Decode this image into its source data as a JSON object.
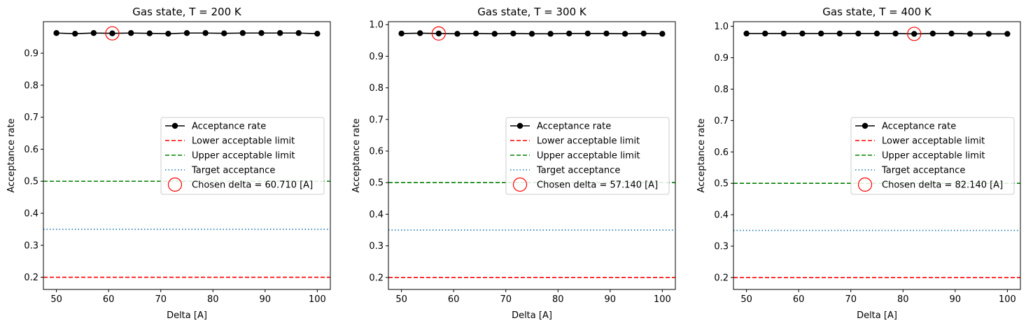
{
  "chart_data": [
    {
      "type": "line",
      "title": "Gas state, T = 200 K",
      "xlabel": "Delta  [A]",
      "ylabel": "Acceptance rate",
      "xlim": [
        47.5,
        102.5
      ],
      "ylim": [
        0.162,
        0.9985
      ],
      "xticks": [
        50,
        60,
        70,
        80,
        90,
        100
      ],
      "yticks": [
        0.2,
        0.3,
        0.4,
        0.5,
        0.6,
        0.7,
        0.8,
        0.9
      ],
      "x": [
        50.0,
        53.57,
        57.14,
        60.71,
        64.29,
        67.86,
        71.43,
        75.0,
        78.57,
        82.14,
        85.71,
        89.29,
        92.86,
        96.43,
        100.0
      ],
      "series": [
        {
          "name": "Acceptance rate",
          "values": [
            0.963,
            0.961,
            0.963,
            0.962,
            0.963,
            0.962,
            0.961,
            0.963,
            0.963,
            0.962,
            0.963,
            0.963,
            0.963,
            0.963,
            0.961
          ],
          "color": "#000000"
        }
      ],
      "reference_lines": [
        {
          "name": "Lower acceptable limit",
          "y": 0.2,
          "color": "#ff0000",
          "style": "dashed"
        },
        {
          "name": "Upper acceptable limit",
          "y": 0.5,
          "color": "#008000",
          "style": "dashed"
        },
        {
          "name": "Target acceptance",
          "y": 0.35,
          "color": "#1f77b4",
          "style": "dotted"
        }
      ],
      "chosen": {
        "label": "Chosen delta = 60.710 [A]",
        "x": 60.71,
        "y": 0.962,
        "color": "#ff0000"
      },
      "legend": "center-right",
      "grid": false
    },
    {
      "type": "line",
      "title": "Gas state, T = 300 K",
      "xlabel": "Delta  [A]",
      "ylabel": "Acceptance rate",
      "xlim": [
        47.5,
        102.5
      ],
      "ylim": [
        0.162,
        1.0094
      ],
      "xticks": [
        50,
        60,
        70,
        80,
        90,
        100
      ],
      "yticks": [
        0.2,
        0.3,
        0.4,
        0.5,
        0.6,
        0.7,
        0.8,
        0.9,
        1.0
      ],
      "x": [
        50.0,
        53.57,
        57.14,
        60.71,
        64.29,
        67.86,
        71.43,
        75.0,
        78.57,
        82.14,
        85.71,
        89.29,
        92.86,
        96.43,
        100.0
      ],
      "series": [
        {
          "name": "Acceptance rate",
          "values": [
            0.972,
            0.973,
            0.972,
            0.971,
            0.972,
            0.971,
            0.972,
            0.971,
            0.971,
            0.972,
            0.972,
            0.972,
            0.971,
            0.972,
            0.971
          ],
          "color": "#000000"
        }
      ],
      "reference_lines": [
        {
          "name": "Lower acceptable limit",
          "y": 0.2,
          "color": "#ff0000",
          "style": "dashed"
        },
        {
          "name": "Upper acceptable limit",
          "y": 0.5,
          "color": "#008000",
          "style": "dashed"
        },
        {
          "name": "Target acceptance",
          "y": 0.35,
          "color": "#1f77b4",
          "style": "dotted"
        }
      ],
      "chosen": {
        "label": "Chosen delta = 57.140 [A]",
        "x": 57.14,
        "y": 0.972,
        "color": "#ff0000"
      },
      "legend": "center-right",
      "grid": false
    },
    {
      "type": "line",
      "title": "Gas state, T = 400 K",
      "xlabel": "Delta  [A]",
      "ylabel": "Acceptance rate",
      "xlim": [
        47.5,
        102.5
      ],
      "ylim": [
        0.162,
        1.0148
      ],
      "xticks": [
        50,
        60,
        70,
        80,
        90,
        100
      ],
      "yticks": [
        0.2,
        0.3,
        0.4,
        0.5,
        0.6,
        0.7,
        0.8,
        0.9,
        1.0
      ],
      "x": [
        50.0,
        53.57,
        57.14,
        60.71,
        64.29,
        67.86,
        71.43,
        75.0,
        78.57,
        82.14,
        85.71,
        89.29,
        92.86,
        96.43,
        100.0
      ],
      "series": [
        {
          "name": "Acceptance rate",
          "values": [
            0.977,
            0.977,
            0.977,
            0.977,
            0.977,
            0.977,
            0.977,
            0.977,
            0.977,
            0.976,
            0.977,
            0.977,
            0.976,
            0.976,
            0.976
          ],
          "color": "#000000"
        }
      ],
      "reference_lines": [
        {
          "name": "Lower acceptable limit",
          "y": 0.2,
          "color": "#ff0000",
          "style": "dashed"
        },
        {
          "name": "Upper acceptable limit",
          "y": 0.5,
          "color": "#008000",
          "style": "dashed"
        },
        {
          "name": "Target acceptance",
          "y": 0.35,
          "color": "#1f77b4",
          "style": "dotted"
        }
      ],
      "chosen": {
        "label": "Chosen delta = 82.140 [A]",
        "x": 82.14,
        "y": 0.976,
        "color": "#ff0000"
      },
      "legend": "center-right",
      "grid": false
    }
  ]
}
